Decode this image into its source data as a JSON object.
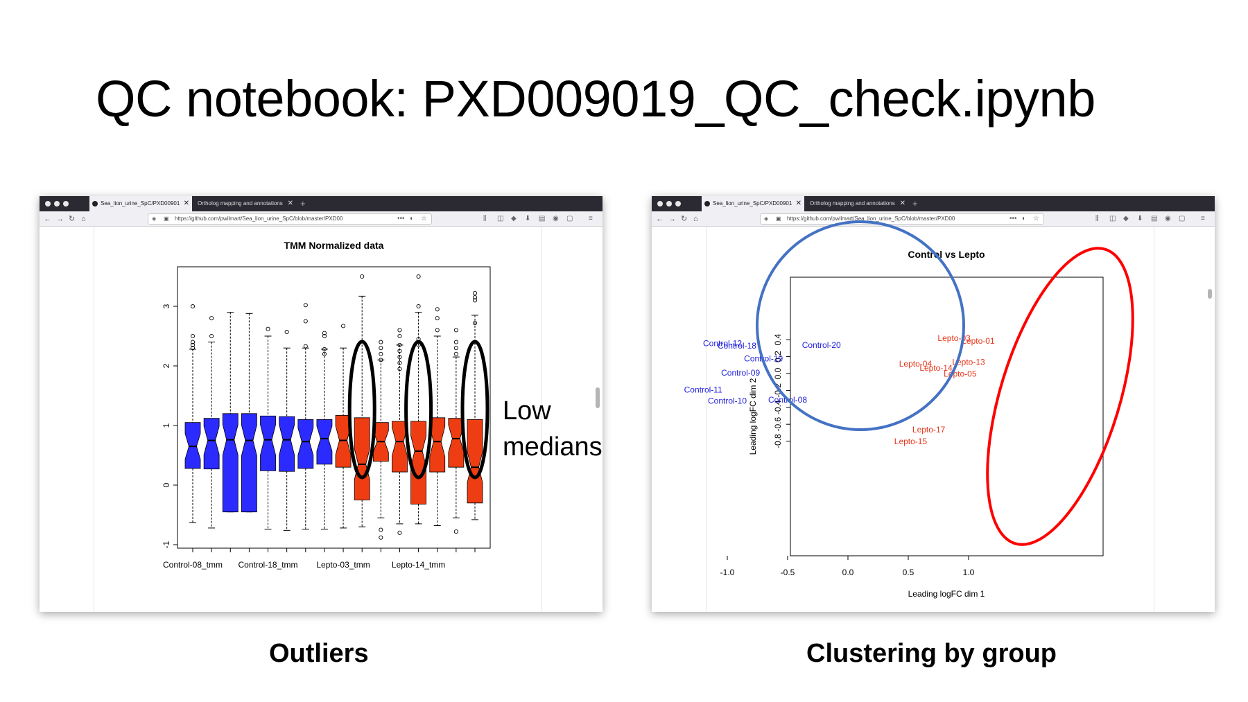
{
  "slide": {
    "title": "QC notebook: PXD009019_QC_check.ipynb",
    "caption_left": "Outliers",
    "caption_right": "Clustering by group",
    "annotation_line1": "Low",
    "annotation_line2": "medians"
  },
  "browser_left": {
    "tab_active": "Sea_lion_urine_SpC/PXD00901",
    "tab_inactive": "Ortholog mapping and annotations",
    "url": "https://github.com/pwilmart/Sea_lion_urine_SpC/blob/master/PXD00"
  },
  "browser_right": {
    "tab_active": "Sea_lion_urine_SpC/PXD00901",
    "tab_inactive": "Ortholog mapping and annotations",
    "url": "https://github.com/pwilmart/Sea_lion_urine_SpC/blob/master/PXD00"
  },
  "colors": {
    "control": "#2b2bff",
    "lepto": "#ee3d12",
    "control_text": "#2020e0",
    "lepto_text": "#e8351a",
    "circle_blue": "#4472c4",
    "circle_red": "#ff0000"
  },
  "chart_data": [
    {
      "type": "boxplot",
      "title": "TMM Normalized data",
      "xlabel": "",
      "ylabel": "",
      "ylim": [
        -1,
        3.5
      ],
      "yticks": [
        -1,
        0,
        1,
        2,
        3
      ],
      "xtick_labels": [
        "Control-08_tmm",
        "Control-18_tmm",
        "Lepto-03_tmm",
        "Lepto-14_tmm"
      ],
      "xtick_label_positions": [
        1,
        5,
        9,
        13
      ],
      "box_count": 16,
      "boxes": [
        {
          "group": "control",
          "q1": 0.28,
          "median": 0.65,
          "q3": 1.05,
          "low": -0.63,
          "high": 2.28,
          "outliers": [
            2.3,
            2.35,
            2.4,
            2.5,
            3.0
          ]
        },
        {
          "group": "control",
          "q1": 0.27,
          "median": 0.75,
          "q3": 1.12,
          "low": -0.72,
          "high": 2.4,
          "outliers": [
            2.5,
            2.8
          ]
        },
        {
          "group": "control",
          "q1": -0.45,
          "median": 0.76,
          "q3": 1.2,
          "low": -0.45,
          "high": 2.9,
          "outliers": []
        },
        {
          "group": "control",
          "q1": -0.45,
          "median": 0.75,
          "q3": 1.2,
          "low": -0.45,
          "high": 2.88,
          "outliers": []
        },
        {
          "group": "control",
          "q1": 0.24,
          "median": 0.76,
          "q3": 1.16,
          "low": -0.74,
          "high": 2.5,
          "outliers": [
            2.62
          ]
        },
        {
          "group": "control",
          "q1": 0.23,
          "median": 0.76,
          "q3": 1.15,
          "low": -0.76,
          "high": 2.3,
          "outliers": [
            2.57
          ]
        },
        {
          "group": "control",
          "q1": 0.28,
          "median": 0.73,
          "q3": 1.1,
          "low": -0.74,
          "high": 2.3,
          "outliers": [
            2.33,
            2.75,
            3.02
          ]
        },
        {
          "group": "control",
          "q1": 0.35,
          "median": 0.78,
          "q3": 1.1,
          "low": -0.74,
          "high": 2.28,
          "outliers": [
            2.2,
            2.28,
            2.5,
            2.55
          ]
        },
        {
          "group": "lepto",
          "q1": 0.3,
          "median": 0.75,
          "q3": 1.17,
          "low": -0.72,
          "high": 2.3,
          "outliers": [
            2.67
          ]
        },
        {
          "group": "lepto",
          "q1": -0.25,
          "median": 0.35,
          "q3": 1.13,
          "low": -0.7,
          "high": 3.17,
          "outliers": [
            3.5
          ]
        },
        {
          "group": "lepto",
          "q1": 0.4,
          "median": 0.73,
          "q3": 1.05,
          "low": -0.55,
          "high": 2.1,
          "outliers": [
            2.1,
            2.2,
            2.3,
            2.4,
            -0.75,
            -0.88
          ]
        },
        {
          "group": "lepto",
          "q1": 0.22,
          "median": 0.73,
          "q3": 1.07,
          "low": -0.65,
          "high": 2.35,
          "outliers": [
            1.95,
            2.05,
            2.15,
            2.25,
            2.35,
            2.5,
            2.6,
            -0.8
          ]
        },
        {
          "group": "lepto",
          "q1": -0.32,
          "median": 0.57,
          "q3": 1.07,
          "low": -0.65,
          "high": 2.9,
          "outliers": [
            2.35,
            2.45,
            3.5,
            3.0
          ]
        },
        {
          "group": "lepto",
          "q1": 0.22,
          "median": 0.73,
          "q3": 1.13,
          "low": -0.68,
          "high": 2.5,
          "outliers": [
            2.6,
            2.8,
            2.95
          ]
        },
        {
          "group": "lepto",
          "q1": 0.3,
          "median": 0.78,
          "q3": 1.12,
          "low": -0.55,
          "high": 2.15,
          "outliers": [
            2.2,
            2.3,
            2.4,
            2.6,
            -0.78
          ]
        },
        {
          "group": "lepto",
          "q1": -0.3,
          "median": 0.3,
          "q3": 1.1,
          "low": -0.58,
          "high": 2.85,
          "outliers": [
            3.1,
            3.22,
            3.15,
            2.72
          ]
        }
      ],
      "highlighted_boxes": [
        10,
        13,
        16
      ]
    },
    {
      "type": "scatter",
      "title": "Control vs Lepto",
      "xlabel": "Leading logFC dim 1",
      "ylabel": "Leading logFC dim 2",
      "xlim": [
        -1.3,
        1.27
      ],
      "ylim": [
        -0.86,
        0.46
      ],
      "xticks": [
        -1.0,
        -0.5,
        0.0,
        0.5,
        1.0
      ],
      "xtick_labels": [
        "-1.0",
        "-0.5",
        "0.0",
        "0.5",
        "1.0"
      ],
      "yticks": [
        -0.8,
        -0.6,
        -0.4,
        -0.2,
        0.0,
        0.2,
        0.4
      ],
      "ytick_labels": [
        "-0.8",
        "-0.6",
        "-0.4",
        "-0.2",
        "0.0",
        "0.2",
        "0.4"
      ],
      "points": [
        {
          "label": "Control-12",
          "x": -1.04,
          "y": 0.35,
          "group": "control"
        },
        {
          "label": "Control-18",
          "x": -0.92,
          "y": 0.32,
          "group": "control"
        },
        {
          "label": "Control-20",
          "x": -0.22,
          "y": 0.33,
          "group": "control"
        },
        {
          "label": "Control-19",
          "x": -0.7,
          "y": 0.17,
          "group": "control"
        },
        {
          "label": "Control-09",
          "x": -0.89,
          "y": 0.0,
          "group": "control"
        },
        {
          "label": "Control-11",
          "x": -1.2,
          "y": -0.2,
          "group": "control"
        },
        {
          "label": "Control-10",
          "x": -1.0,
          "y": -0.33,
          "group": "control"
        },
        {
          "label": "Control-08",
          "x": -0.5,
          "y": -0.32,
          "group": "control"
        },
        {
          "label": "Lepto-03",
          "x": 0.88,
          "y": 0.41,
          "group": "lepto"
        },
        {
          "label": "Lepto-01",
          "x": 1.08,
          "y": 0.38,
          "group": "lepto"
        },
        {
          "label": "Lepto-04",
          "x": 0.56,
          "y": 0.11,
          "group": "lepto"
        },
        {
          "label": "Lepto-13",
          "x": 1.0,
          "y": 0.13,
          "group": "lepto"
        },
        {
          "label": "Lepto-14",
          "x": 0.73,
          "y": 0.06,
          "group": "lepto"
        },
        {
          "label": "Lepto-05",
          "x": 0.93,
          "y": -0.01,
          "group": "lepto"
        },
        {
          "label": "Lepto-17",
          "x": 0.67,
          "y": -0.67,
          "group": "lepto"
        },
        {
          "label": "Lepto-15",
          "x": 0.52,
          "y": -0.81,
          "group": "lepto"
        }
      ]
    }
  ]
}
